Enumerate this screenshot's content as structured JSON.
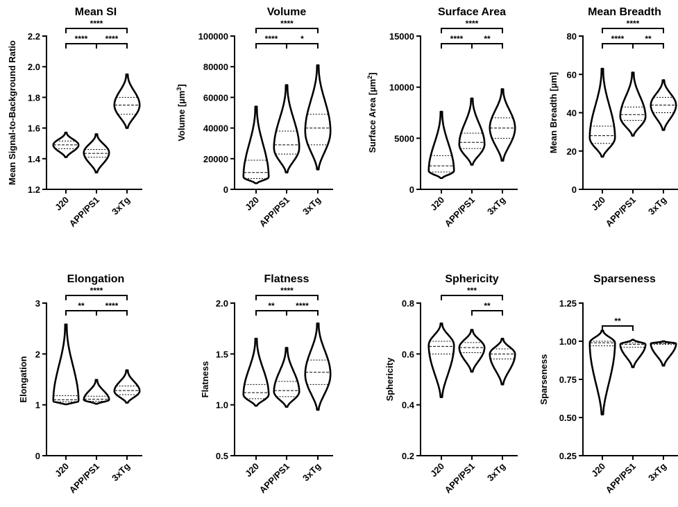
{
  "chart_data": [
    {
      "type": "violin",
      "title": "Mean SI",
      "ylabel": "Mean Signal-to-Background Ratio",
      "ylim": [
        1.2,
        2.2
      ],
      "yticks": [
        "1.2",
        "1.4",
        "1.6",
        "1.8",
        "2.0",
        "2.2"
      ],
      "categories": [
        "J20",
        "APP/PS1",
        "3xTg"
      ],
      "series": [
        {
          "min": 1.41,
          "q1": 1.465,
          "median": 1.49,
          "q3": 1.515,
          "max": 1.57,
          "mode": 1.49
        },
        {
          "min": 1.31,
          "q1": 1.41,
          "median": 1.435,
          "q3": 1.46,
          "max": 1.56,
          "mode": 1.44
        },
        {
          "min": 1.6,
          "q1": 1.69,
          "median": 1.75,
          "q3": 1.8,
          "max": 1.95,
          "mode": 1.75
        }
      ],
      "comparisons": [
        {
          "from": 0,
          "to": 2,
          "label": "****"
        },
        {
          "from": 1,
          "to": 2,
          "label": "****"
        },
        {
          "from": 0,
          "to": 1,
          "label": "****"
        }
      ]
    },
    {
      "type": "violin",
      "title": "Volume",
      "ylabel": "Volume [µm³]",
      "ylim": [
        0,
        100000
      ],
      "yticks": [
        "0",
        "20000",
        "40000",
        "60000",
        "80000",
        "100000"
      ],
      "categories": [
        "J20",
        "APP/PS1",
        "3xTg"
      ],
      "series": [
        {
          "min": 4000,
          "q1": 7000,
          "median": 11000,
          "q3": 19000,
          "max": 54000,
          "mode": 8000
        },
        {
          "min": 11000,
          "q1": 23000,
          "median": 29000,
          "q3": 38000,
          "max": 68000,
          "mode": 27000
        },
        {
          "min": 13000,
          "q1": 29000,
          "median": 40000,
          "q3": 49000,
          "max": 81000,
          "mode": 38000
        }
      ],
      "comparisons": [
        {
          "from": 0,
          "to": 2,
          "label": "****"
        },
        {
          "from": 0,
          "to": 1,
          "label": "****"
        },
        {
          "from": 1,
          "to": 2,
          "label": "*"
        }
      ]
    },
    {
      "type": "violin",
      "title": "Surface Area",
      "ylabel": "Surface Area [µm²]",
      "ylim": [
        0,
        15000
      ],
      "yticks": [
        "0",
        "5000",
        "10000",
        "15000"
      ],
      "categories": [
        "J20",
        "APP/PS1",
        "3xTg"
      ],
      "series": [
        {
          "min": 1100,
          "q1": 1700,
          "median": 2300,
          "q3": 3300,
          "max": 7600,
          "mode": 1800
        },
        {
          "min": 2400,
          "q1": 4000,
          "median": 4600,
          "q3": 5500,
          "max": 8900,
          "mode": 4400
        },
        {
          "min": 2800,
          "q1": 5000,
          "median": 6000,
          "q3": 7000,
          "max": 9800,
          "mode": 6000
        }
      ],
      "comparisons": [
        {
          "from": 0,
          "to": 2,
          "label": "****"
        },
        {
          "from": 0,
          "to": 1,
          "label": "****"
        },
        {
          "from": 1,
          "to": 2,
          "label": "**"
        }
      ]
    },
    {
      "type": "violin",
      "title": "Mean Breadth",
      "ylabel": "Mean Breadth [µm]",
      "ylim": [
        0,
        80
      ],
      "yticks": [
        "0",
        "20",
        "40",
        "60",
        "80"
      ],
      "categories": [
        "J20",
        "APP/PS1",
        "3xTg"
      ],
      "series": [
        {
          "min": 17,
          "q1": 24,
          "median": 28,
          "q3": 33,
          "max": 63,
          "mode": 27
        },
        {
          "min": 28,
          "q1": 36,
          "median": 39,
          "q3": 43,
          "max": 61,
          "mode": 38
        },
        {
          "min": 31,
          "q1": 40,
          "median": 44,
          "q3": 48,
          "max": 57,
          "mode": 44
        }
      ],
      "comparisons": [
        {
          "from": 0,
          "to": 2,
          "label": "****"
        },
        {
          "from": 0,
          "to": 1,
          "label": "****"
        },
        {
          "from": 1,
          "to": 2,
          "label": "**"
        }
      ]
    },
    {
      "type": "violin",
      "title": "Elongation",
      "ylabel": "Elongation",
      "ylim": [
        0,
        3
      ],
      "yticks": [
        "0",
        "1",
        "2",
        "3"
      ],
      "categories": [
        "J20",
        "APP/PS1",
        "3xTg"
      ],
      "series": [
        {
          "min": 1.01,
          "q1": 1.06,
          "median": 1.1,
          "q3": 1.18,
          "max": 2.58,
          "mode": 1.07
        },
        {
          "min": 1.02,
          "q1": 1.07,
          "median": 1.11,
          "q3": 1.17,
          "max": 1.49,
          "mode": 1.1
        },
        {
          "min": 1.04,
          "q1": 1.2,
          "median": 1.28,
          "q3": 1.37,
          "max": 1.68,
          "mode": 1.27
        }
      ],
      "comparisons": [
        {
          "from": 0,
          "to": 2,
          "label": "****"
        },
        {
          "from": 0,
          "to": 1,
          "label": "**"
        },
        {
          "from": 1,
          "to": 2,
          "label": "****"
        }
      ]
    },
    {
      "type": "violin",
      "title": "Flatness",
      "ylabel": "Flatness",
      "ylim": [
        0.5,
        2.0
      ],
      "yticks": [
        "0.5",
        "1.0",
        "1.5",
        "2.0"
      ],
      "categories": [
        "J20",
        "APP/PS1",
        "3xTg"
      ],
      "series": [
        {
          "min": 0.99,
          "q1": 1.06,
          "median": 1.12,
          "q3": 1.2,
          "max": 1.65,
          "mode": 1.1
        },
        {
          "min": 0.98,
          "q1": 1.08,
          "median": 1.14,
          "q3": 1.23,
          "max": 1.56,
          "mode": 1.13
        },
        {
          "min": 0.95,
          "q1": 1.2,
          "median": 1.32,
          "q3": 1.44,
          "max": 1.8,
          "mode": 1.3
        }
      ],
      "comparisons": [
        {
          "from": 0,
          "to": 2,
          "label": "****"
        },
        {
          "from": 1,
          "to": 2,
          "label": "****"
        },
        {
          "from": 0,
          "to": 1,
          "label": "**"
        }
      ]
    },
    {
      "type": "violin",
      "title": "Sphericity",
      "ylabel": "Sphericity",
      "ylim": [
        0.2,
        0.8
      ],
      "yticks": [
        "0.2",
        "0.4",
        "0.6",
        "0.8"
      ],
      "categories": [
        "J20",
        "APP/PS1",
        "3xTg"
      ],
      "series": [
        {
          "min": 0.43,
          "q1": 0.6,
          "median": 0.63,
          "q3": 0.65,
          "max": 0.72,
          "mode": 0.635
        },
        {
          "min": 0.53,
          "q1": 0.605,
          "median": 0.625,
          "q3": 0.645,
          "max": 0.695,
          "mode": 0.625
        },
        {
          "min": 0.48,
          "q1": 0.58,
          "median": 0.6,
          "q3": 0.62,
          "max": 0.66,
          "mode": 0.6
        }
      ],
      "comparisons": [
        {
          "from": 0,
          "to": 2,
          "label": "***"
        },
        {
          "from": 1,
          "to": 2,
          "label": "**"
        }
      ]
    },
    {
      "type": "violin",
      "title": "Sparseness",
      "ylabel": "Sparseness",
      "ylim": [
        0.25,
        1.25
      ],
      "yticks": [
        "0.25",
        "0.50",
        "0.75",
        "1.00",
        "1.25"
      ],
      "categories": [
        "J20",
        "APP/PS1",
        "3xTg"
      ],
      "series": [
        {
          "min": 0.52,
          "q1": 0.97,
          "median": 0.99,
          "q3": 1.0,
          "max": 1.07,
          "mode": 0.99
        },
        {
          "min": 0.83,
          "q1": 0.96,
          "median": 0.98,
          "q3": 0.99,
          "max": 1.01,
          "mode": 0.98
        },
        {
          "min": 0.84,
          "q1": 0.98,
          "median": 0.985,
          "q3": 0.99,
          "max": 1.0,
          "mode": 0.985
        }
      ],
      "comparisons": [
        {
          "from": 0,
          "to": 1,
          "label": "**"
        }
      ]
    }
  ]
}
